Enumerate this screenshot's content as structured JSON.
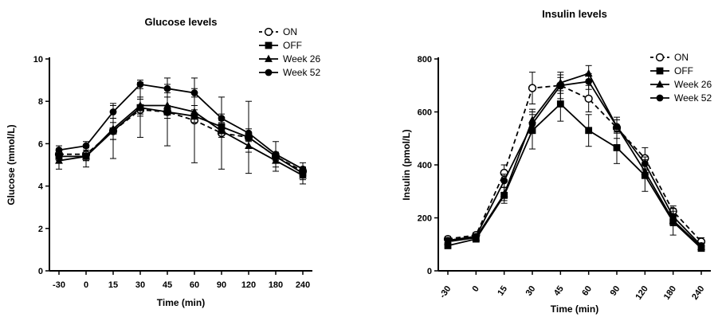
{
  "chart_data": [
    {
      "type": "line",
      "title": "Glucose levels",
      "xlabel": "Time (min)",
      "ylabel": "Glucose (mmol/L)",
      "categories": [
        "-30",
        "0",
        "15",
        "30",
        "45",
        "60",
        "90",
        "120",
        "180",
        "240"
      ],
      "ylim": [
        0,
        10
      ],
      "yticks": [
        0,
        2,
        4,
        6,
        8,
        10
      ],
      "tick_rotation": 0,
      "grid": false,
      "legend_position": "top-right",
      "series": [
        {
          "name": "ON",
          "marker": "open-circle",
          "dash": true,
          "values": [
            5.5,
            5.5,
            6.6,
            7.6,
            7.5,
            7.1,
            6.5,
            6.3,
            5.4,
            4.7
          ],
          "err": [
            0.2,
            0.3,
            1.3,
            1.3,
            1.6,
            2.0,
            1.7,
            1.7,
            0.7,
            0.4
          ]
        },
        {
          "name": "OFF",
          "marker": "square",
          "dash": false,
          "values": [
            5.4,
            5.4,
            6.6,
            7.7,
            7.5,
            7.3,
            6.8,
            6.3,
            5.4,
            4.6
          ],
          "err": [
            0.2,
            0.2,
            0.4,
            0.4,
            0.3,
            0.3,
            0.3,
            0.2,
            0.2,
            0.2
          ]
        },
        {
          "name": "Week 26",
          "marker": "triangle",
          "dash": false,
          "values": [
            5.2,
            5.4,
            6.7,
            7.8,
            7.8,
            7.5,
            6.6,
            5.9,
            5.2,
            4.5
          ],
          "err": [
            0.4,
            0.5,
            0.5,
            0.4,
            0.4,
            0.3,
            0.3,
            0.3,
            0.3,
            0.4
          ]
        },
        {
          "name": "Week 52",
          "marker": "circle",
          "dash": false,
          "values": [
            5.7,
            5.9,
            7.5,
            8.8,
            8.6,
            8.4,
            7.2,
            6.5,
            5.5,
            4.8
          ],
          "err": [
            0.2,
            0.2,
            0.3,
            0.2,
            0.2,
            0.2,
            0.2,
            0.2,
            0.1,
            0.1
          ]
        }
      ]
    },
    {
      "type": "line",
      "title": "Insulin levels",
      "xlabel": "Time (min)",
      "ylabel": "Insulin (pmol/L)",
      "categories": [
        "-30",
        "0",
        "15",
        "30",
        "45",
        "60",
        "90",
        "120",
        "180",
        "240"
      ],
      "ylim": [
        0,
        800
      ],
      "yticks": [
        0,
        200,
        400,
        600,
        800
      ],
      "tick_rotation": -55,
      "grid": false,
      "legend_position": "top-right",
      "series": [
        {
          "name": "ON",
          "marker": "open-circle",
          "dash": true,
          "values": [
            120,
            135,
            370,
            690,
            700,
            650,
            540,
            425,
            225,
            110
          ],
          "err": [
            10,
            10,
            30,
            60,
            50,
            50,
            40,
            40,
            20,
            15
          ]
        },
        {
          "name": "OFF",
          "marker": "square",
          "dash": false,
          "values": [
            95,
            120,
            285,
            530,
            630,
            530,
            465,
            360,
            185,
            85
          ],
          "err": [
            10,
            10,
            30,
            70,
            65,
            60,
            60,
            60,
            50,
            10
          ]
        },
        {
          "name": "Week 26",
          "marker": "triangle",
          "dash": false,
          "values": [
            110,
            125,
            290,
            570,
            710,
            745,
            545,
            375,
            190,
            90
          ],
          "err": [
            10,
            10,
            25,
            40,
            30,
            30,
            25,
            25,
            20,
            10
          ]
        },
        {
          "name": "Week 52",
          "marker": "circle",
          "dash": false,
          "values": [
            115,
            130,
            340,
            555,
            700,
            715,
            545,
            405,
            205,
            95
          ],
          "err": [
            10,
            10,
            25,
            35,
            30,
            30,
            25,
            25,
            20,
            10
          ]
        }
      ]
    }
  ]
}
